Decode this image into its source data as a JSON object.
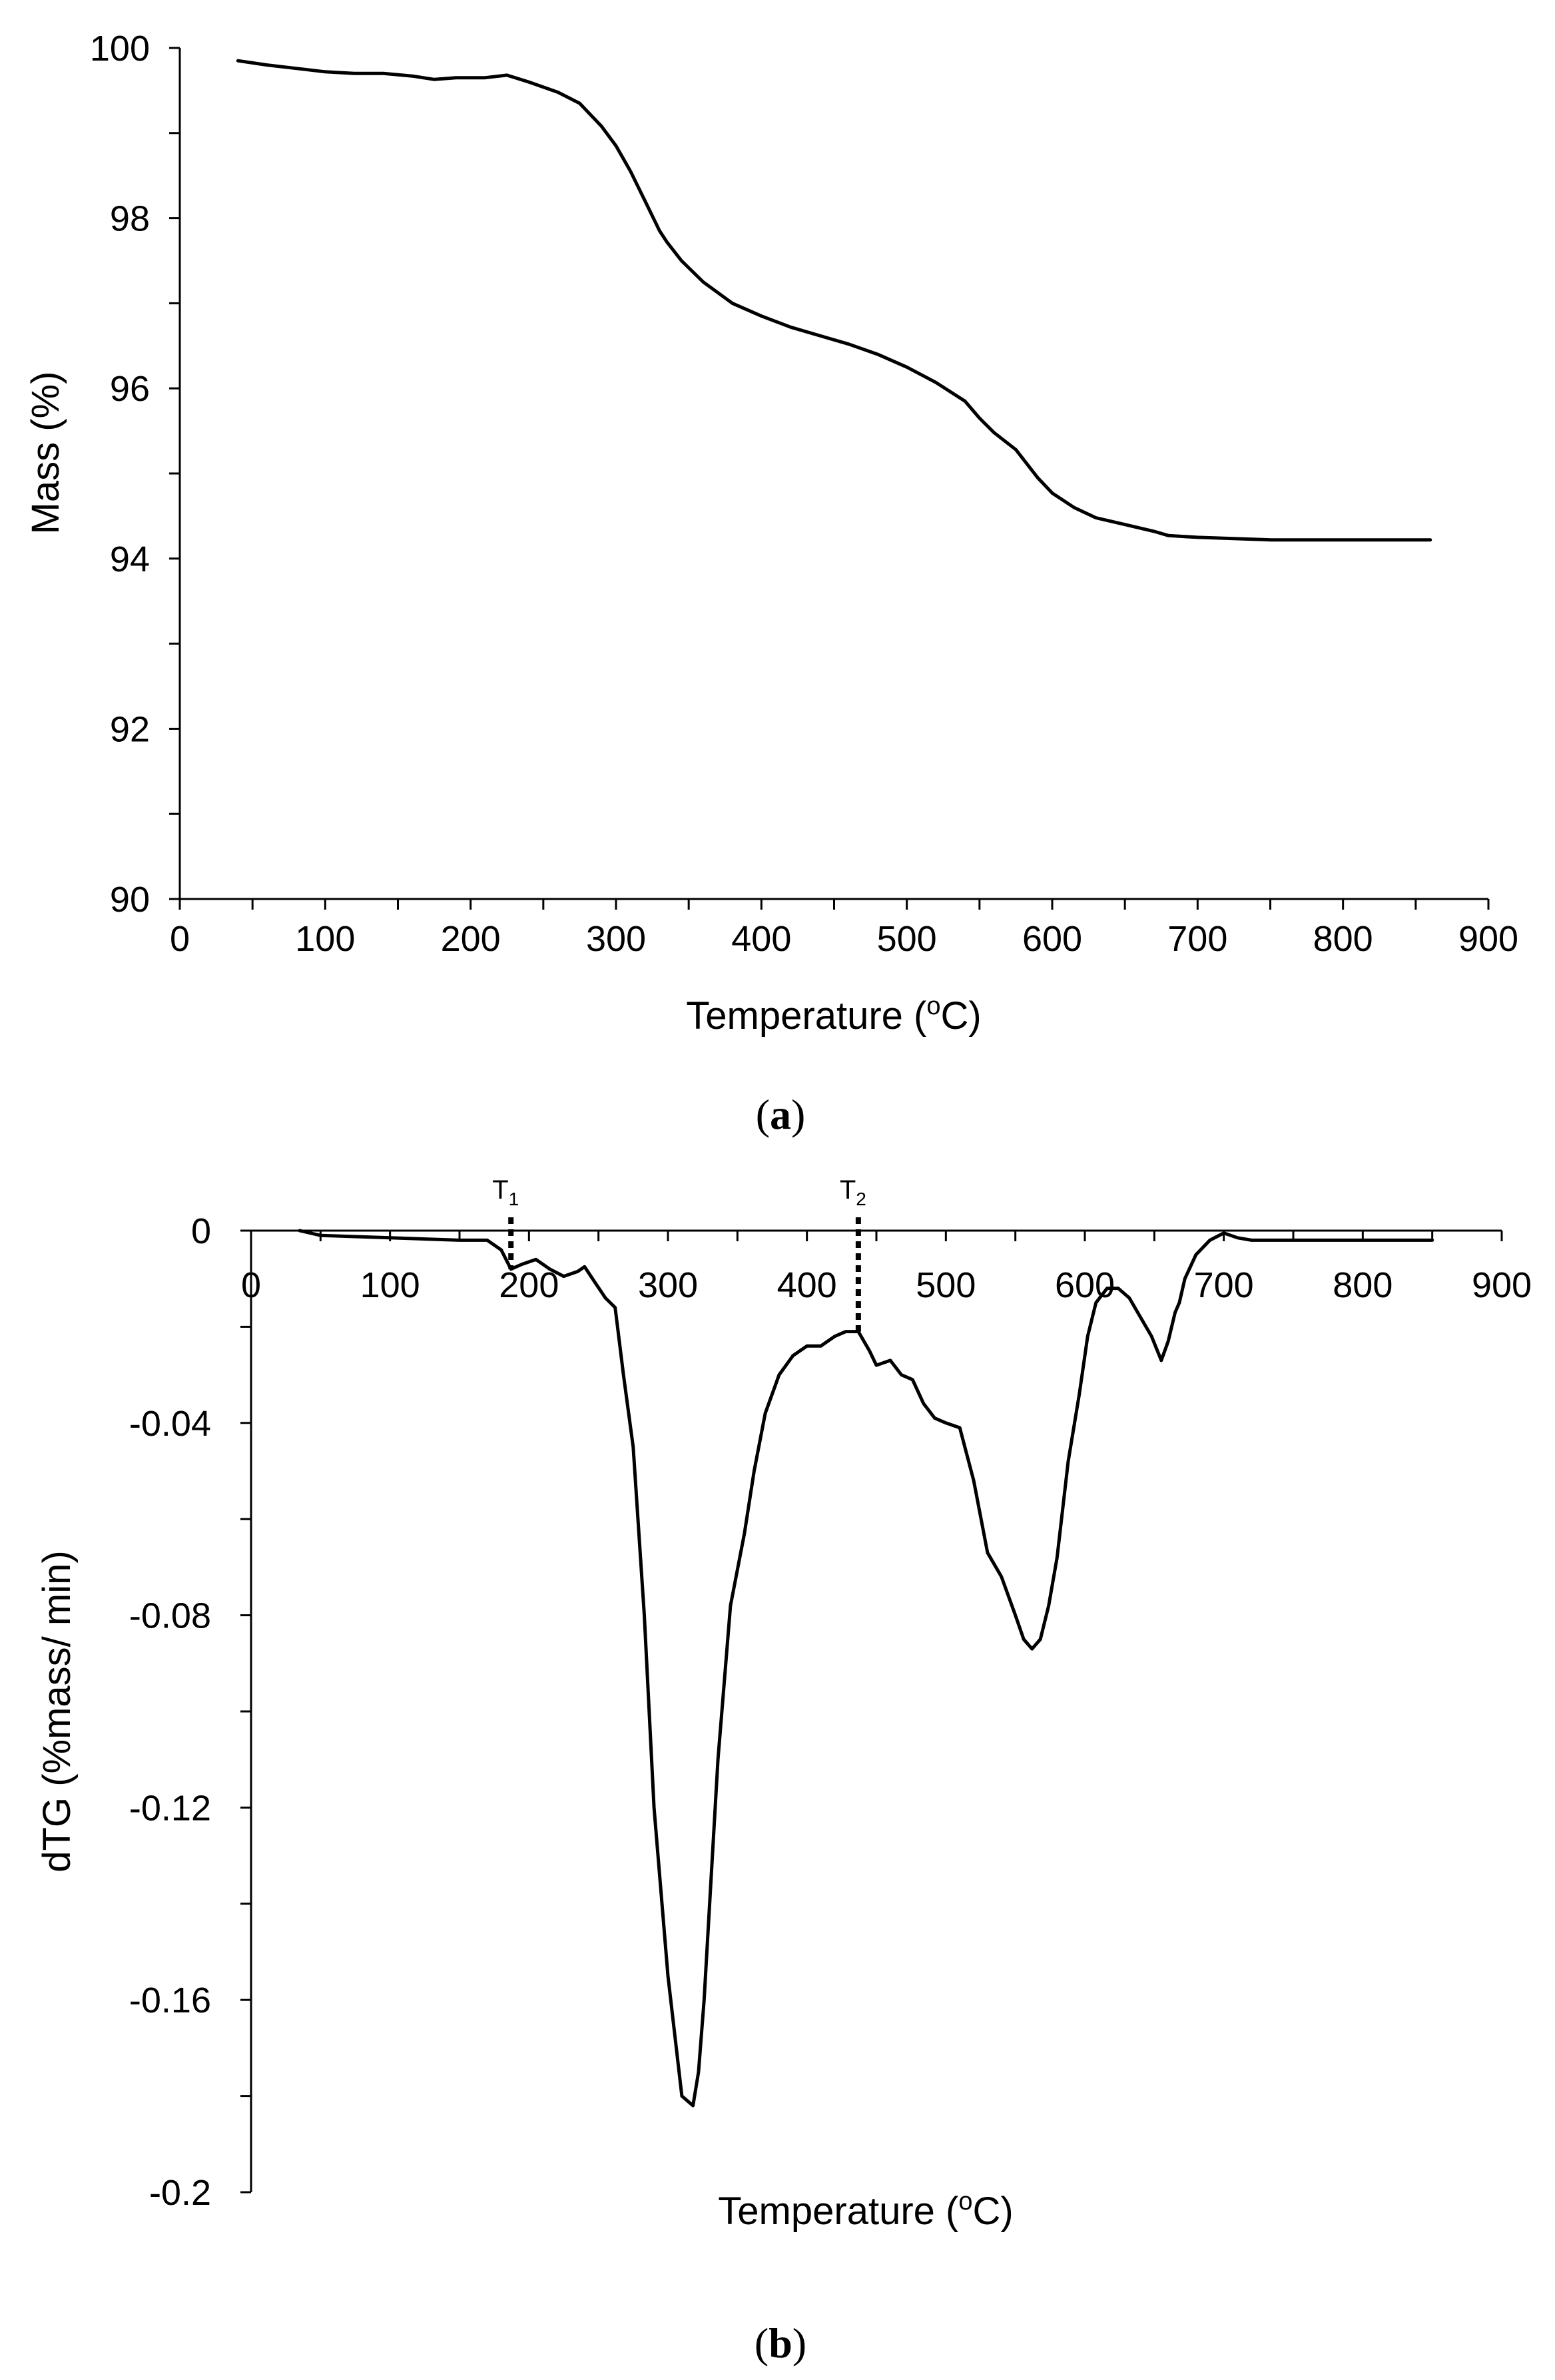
{
  "chart_data": [
    {
      "type": "line",
      "panel_label": "a",
      "xlabel": "Temperature",
      "xlabel_unit_prefix": "(",
      "xlabel_unit_sup": "o",
      "xlabel_unit_suffix": "C)",
      "ylabel": "Mass (%)",
      "xlim": [
        0,
        900
      ],
      "ylim": [
        90,
        100
      ],
      "xticks": [
        0,
        100,
        200,
        300,
        400,
        500,
        600,
        700,
        800,
        900
      ],
      "yticks": [
        90,
        92,
        94,
        96,
        98,
        100
      ],
      "grid": false,
      "series": [
        {
          "x": [
            40,
            60,
            80,
            100,
            120,
            140,
            160,
            175,
            190,
            210,
            225,
            240,
            260,
            275,
            290,
            300,
            310,
            320,
            330,
            335,
            345,
            360,
            380,
            400,
            420,
            440,
            460,
            480,
            500,
            520,
            540,
            550,
            560,
            575,
            590,
            600,
            615,
            630,
            650,
            670,
            680,
            700,
            750,
            800,
            860
          ],
          "y": [
            99.85,
            99.8,
            99.76,
            99.72,
            99.7,
            99.7,
            99.67,
            99.63,
            99.65,
            99.65,
            99.68,
            99.6,
            99.48,
            99.35,
            99.08,
            98.85,
            98.55,
            98.2,
            97.85,
            97.72,
            97.5,
            97.25,
            97.0,
            96.85,
            96.72,
            96.62,
            96.52,
            96.4,
            96.25,
            96.07,
            95.85,
            95.65,
            95.48,
            95.28,
            94.95,
            94.77,
            94.6,
            94.48,
            94.4,
            94.32,
            94.27,
            94.25,
            94.22,
            94.22,
            94.22
          ]
        }
      ]
    },
    {
      "type": "line",
      "panel_label": "b",
      "xlabel": "Temperature",
      "xlabel_unit_prefix": "(",
      "xlabel_unit_sup": "o",
      "xlabel_unit_suffix": "C)",
      "ylabel": "dTG (%mass/ min)",
      "xlim": [
        0,
        900
      ],
      "ylim": [
        -0.2,
        0
      ],
      "xticks": [
        0,
        100,
        200,
        300,
        400,
        500,
        600,
        700,
        800,
        900
      ],
      "yticks": [
        0,
        -0.04,
        -0.08,
        -0.12,
        -0.16,
        -0.2
      ],
      "ytick_labels": [
        "0",
        "-0.04",
        "-0.08",
        "-0.12",
        "-0.16",
        "-0.2"
      ],
      "grid": false,
      "annotations": [
        {
          "label": "T",
          "subscript": "1",
          "x": 187
        },
        {
          "label": "T",
          "subscript": "2",
          "x": 437
        }
      ],
      "series": [
        {
          "x": [
            35,
            50,
            100,
            150,
            170,
            180,
            187,
            195,
            205,
            215,
            225,
            235,
            240,
            248,
            255,
            262,
            268,
            275,
            283,
            290,
            300,
            310,
            318,
            322,
            326,
            330,
            336,
            345,
            355,
            362,
            370,
            380,
            390,
            400,
            410,
            420,
            428,
            437,
            445,
            450,
            460,
            468,
            476,
            484,
            492,
            500,
            510,
            520,
            530,
            540,
            550,
            556,
            562,
            568,
            574,
            580,
            588,
            596,
            602,
            608,
            616,
            624,
            632,
            640,
            648,
            655,
            660,
            665,
            668,
            672,
            680,
            690,
            700,
            710,
            720,
            740,
            800,
            850
          ],
          "y": [
            0.0,
            -0.001,
            -0.0015,
            -0.002,
            -0.002,
            -0.004,
            -0.008,
            -0.007,
            -0.006,
            -0.008,
            -0.0095,
            -0.0085,
            -0.0075,
            -0.011,
            -0.014,
            -0.016,
            -0.03,
            -0.045,
            -0.08,
            -0.12,
            -0.155,
            -0.18,
            -0.182,
            -0.175,
            -0.16,
            -0.14,
            -0.11,
            -0.078,
            -0.063,
            -0.05,
            -0.038,
            -0.03,
            -0.026,
            -0.024,
            -0.024,
            -0.022,
            -0.021,
            -0.021,
            -0.025,
            -0.028,
            -0.027,
            -0.03,
            -0.031,
            -0.036,
            -0.039,
            -0.04,
            -0.041,
            -0.052,
            -0.067,
            -0.072,
            -0.08,
            -0.085,
            -0.087,
            -0.085,
            -0.078,
            -0.068,
            -0.048,
            -0.034,
            -0.022,
            -0.015,
            -0.012,
            -0.012,
            -0.014,
            -0.018,
            -0.022,
            -0.027,
            -0.023,
            -0.017,
            -0.015,
            -0.01,
            -0.005,
            -0.002,
            -0.0005,
            -0.0015,
            -0.002,
            -0.002,
            -0.002,
            -0.002
          ]
        }
      ]
    }
  ]
}
